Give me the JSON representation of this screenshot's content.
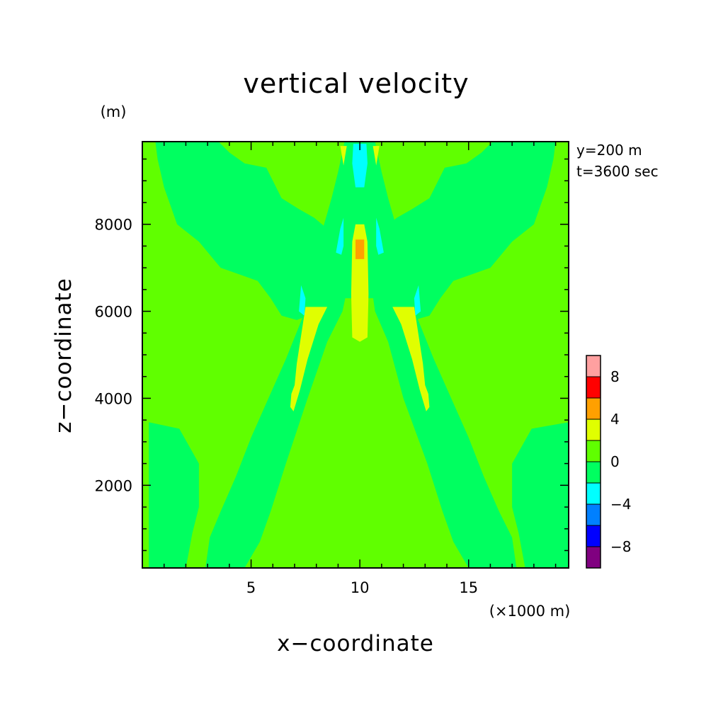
{
  "chart_data": {
    "type": "heatmap",
    "title": "vertical velocity",
    "xlabel": "x−coordinate",
    "ylabel": "z−coordinate",
    "x_unit": "(×1000 m)",
    "y_unit": "(m)",
    "info_lines": [
      "y=200 m",
      "t=3600 sec"
    ],
    "xlim": [
      0,
      19.6
    ],
    "ylim": [
      100,
      9900
    ],
    "x_ticks": [
      "5",
      "10",
      "15"
    ],
    "x_tick_values": [
      5,
      10,
      15
    ],
    "y_ticks": [
      "2000",
      "4000",
      "6000",
      "8000"
    ],
    "y_tick_values": [
      2000,
      4000,
      6000,
      8000
    ],
    "colorbar": {
      "levels": [
        -10,
        -8,
        -6,
        -4,
        -2,
        0,
        2,
        4,
        6,
        8,
        10
      ],
      "colors": [
        "#800080",
        "#0000ff",
        "#0080ff",
        "#00ffff",
        "#00ff60",
        "#60ff00",
        "#e0ff00",
        "#ffa000",
        "#ff0000",
        "#ffa0a0"
      ],
      "tick_labels": [
        "−8",
        "−4",
        "0",
        "4",
        "8"
      ],
      "tick_values": [
        -8,
        -4,
        0,
        4,
        8
      ]
    },
    "background_class": "0 to 2",
    "regions": [
      {
        "class": "-2 to 0",
        "points": [
          [
            0.3,
            100
          ],
          [
            2.0,
            100
          ],
          [
            2.3,
            900
          ],
          [
            2.6,
            1500
          ],
          [
            2.6,
            2500
          ],
          [
            1.7,
            3300
          ],
          [
            0.3,
            3450
          ]
        ]
      },
      {
        "class": "-2 to 0",
        "points": [
          [
            19.6,
            100
          ],
          [
            17.6,
            100
          ],
          [
            17.3,
            900
          ],
          [
            17.0,
            1500
          ],
          [
            17.0,
            2500
          ],
          [
            17.9,
            3300
          ],
          [
            19.6,
            3450
          ]
        ]
      },
      {
        "class": "-2 to 0",
        "points": [
          [
            2.2,
            9900
          ],
          [
            0.6,
            9900
          ],
          [
            0.7,
            9500
          ],
          [
            1.0,
            8850
          ],
          [
            1.6,
            8000
          ],
          [
            2.6,
            7600
          ],
          [
            3.6,
            7000
          ],
          [
            5.3,
            6700
          ],
          [
            5.9,
            6300
          ],
          [
            6.4,
            5900
          ],
          [
            7.1,
            5800
          ],
          [
            8.1,
            6000
          ],
          [
            8.6,
            6700
          ],
          [
            8.8,
            7300
          ],
          [
            8.5,
            7900
          ],
          [
            7.9,
            8150
          ],
          [
            7.2,
            8350
          ],
          [
            6.4,
            8600
          ],
          [
            6.0,
            9000
          ],
          [
            5.7,
            9300
          ],
          [
            4.7,
            9400
          ],
          [
            4.0,
            9650
          ],
          [
            3.5,
            9900
          ]
        ]
      },
      {
        "class": "-2 to 0",
        "points": [
          [
            17.4,
            9900
          ],
          [
            19.0,
            9900
          ],
          [
            18.9,
            9500
          ],
          [
            18.6,
            8850
          ],
          [
            18.0,
            8000
          ],
          [
            17.0,
            7600
          ],
          [
            16.0,
            7000
          ],
          [
            14.3,
            6700
          ],
          [
            13.7,
            6300
          ],
          [
            13.2,
            5900
          ],
          [
            12.5,
            5800
          ],
          [
            11.5,
            6000
          ],
          [
            11.0,
            6700
          ],
          [
            10.8,
            7300
          ],
          [
            11.1,
            7900
          ],
          [
            11.7,
            8150
          ],
          [
            12.4,
            8350
          ],
          [
            13.2,
            8600
          ],
          [
            13.6,
            9000
          ],
          [
            13.9,
            9300
          ],
          [
            14.9,
            9400
          ],
          [
            15.6,
            9650
          ],
          [
            16.1,
            9900
          ]
        ]
      },
      {
        "class": "-2 to 0",
        "points": [
          [
            9.3,
            6300
          ],
          [
            8.6,
            6500
          ],
          [
            8.3,
            7100
          ],
          [
            8.3,
            7900
          ],
          [
            8.7,
            8600
          ],
          [
            9.0,
            9200
          ],
          [
            9.3,
            9900
          ],
          [
            10.7,
            9900
          ],
          [
            11.0,
            9200
          ],
          [
            11.3,
            8600
          ],
          [
            11.7,
            7900
          ],
          [
            11.7,
            7100
          ],
          [
            11.4,
            6500
          ],
          [
            10.7,
            6300
          ]
        ]
      },
      {
        "class": "-2 to 0",
        "points": [
          [
            4.7,
            100
          ],
          [
            5.4,
            700
          ],
          [
            5.9,
            1400
          ],
          [
            6.6,
            2500
          ],
          [
            7.6,
            4000
          ],
          [
            8.5,
            5300
          ],
          [
            9.2,
            6000
          ],
          [
            9.5,
            6700
          ],
          [
            9.1,
            7200
          ],
          [
            8.4,
            7200
          ],
          [
            7.9,
            6700
          ],
          [
            7.4,
            5900
          ],
          [
            6.6,
            4900
          ],
          [
            5.8,
            4000
          ],
          [
            5.0,
            3100
          ],
          [
            4.3,
            2200
          ],
          [
            3.6,
            1400
          ],
          [
            3.1,
            800
          ],
          [
            2.9,
            100
          ]
        ]
      },
      {
        "class": "-2 to 0",
        "points": [
          [
            15.0,
            100
          ],
          [
            14.3,
            700
          ],
          [
            13.8,
            1400
          ],
          [
            13.1,
            2500
          ],
          [
            12.0,
            4000
          ],
          [
            11.3,
            5300
          ],
          [
            10.7,
            6000
          ],
          [
            10.5,
            6700
          ],
          [
            10.9,
            7200
          ],
          [
            11.6,
            7200
          ],
          [
            12.1,
            6700
          ],
          [
            12.6,
            5900
          ],
          [
            13.4,
            4900
          ],
          [
            14.2,
            4000
          ],
          [
            15.0,
            3100
          ],
          [
            15.7,
            2200
          ],
          [
            16.4,
            1400
          ],
          [
            17.0,
            800
          ],
          [
            17.2,
            100
          ]
        ]
      },
      {
        "class": "0 to 2",
        "points": [
          [
            8.75,
            1900
          ],
          [
            8.4,
            1650
          ],
          [
            8.5,
            1000
          ],
          [
            8.65,
            800
          ],
          [
            9.0,
            850
          ],
          [
            9.1,
            1500
          ]
        ]
      },
      {
        "class": "0 to 2",
        "points": [
          [
            11.25,
            1900
          ],
          [
            11.6,
            1650
          ],
          [
            11.5,
            1000
          ],
          [
            11.35,
            800
          ],
          [
            11.0,
            850
          ],
          [
            10.9,
            1500
          ]
        ]
      },
      {
        "class": "0 to 2",
        "points": [
          [
            9.5,
            2000
          ],
          [
            9.6,
            1600
          ],
          [
            10.0,
            1400
          ],
          [
            10.4,
            1600
          ],
          [
            10.5,
            2000
          ],
          [
            10.5,
            5000
          ],
          [
            9.5,
            5000
          ]
        ]
      },
      {
        "class": "2 to 4",
        "points": [
          [
            9.65,
            5400
          ],
          [
            9.6,
            6400
          ],
          [
            9.65,
            7600
          ],
          [
            9.8,
            8000
          ],
          [
            10.2,
            8000
          ],
          [
            10.35,
            7600
          ],
          [
            10.4,
            6400
          ],
          [
            10.35,
            5400
          ],
          [
            10.0,
            5300
          ]
        ]
      },
      {
        "class": "4 to 6",
        "points": [
          [
            9.8,
            7200
          ],
          [
            9.8,
            7650
          ],
          [
            10.2,
            7650
          ],
          [
            10.2,
            7200
          ]
        ]
      },
      {
        "class": "2 to 4",
        "points": [
          [
            7.5,
            6100
          ],
          [
            7.1,
            4800
          ],
          [
            7.0,
            4300
          ],
          [
            6.85,
            4100
          ],
          [
            6.8,
            3800
          ],
          [
            6.95,
            3700
          ],
          [
            7.25,
            4200
          ],
          [
            7.6,
            4900
          ],
          [
            8.1,
            5700
          ],
          [
            8.5,
            6100
          ]
        ]
      },
      {
        "class": "2 to 4",
        "points": [
          [
            12.5,
            6100
          ],
          [
            12.9,
            4800
          ],
          [
            13.0,
            4300
          ],
          [
            13.15,
            4100
          ],
          [
            13.2,
            3800
          ],
          [
            13.05,
            3700
          ],
          [
            12.75,
            4200
          ],
          [
            12.4,
            4900
          ],
          [
            11.9,
            5700
          ],
          [
            11.5,
            6100
          ]
        ]
      },
      {
        "class": "2 to 4",
        "points": [
          [
            9.1,
            9800
          ],
          [
            9.25,
            9350
          ],
          [
            9.4,
            9800
          ]
        ]
      },
      {
        "class": "2 to 4",
        "points": [
          [
            10.9,
            9800
          ],
          [
            10.75,
            9350
          ],
          [
            10.6,
            9800
          ]
        ]
      },
      {
        "class": "-4 to -2",
        "points": [
          [
            9.7,
            9850
          ],
          [
            9.65,
            9400
          ],
          [
            9.8,
            8850
          ],
          [
            10.2,
            8850
          ],
          [
            10.35,
            9400
          ],
          [
            10.3,
            9850
          ]
        ]
      },
      {
        "class": "-4 to -2",
        "points": [
          [
            8.9,
            7350
          ],
          [
            9.1,
            7900
          ],
          [
            9.25,
            8150
          ],
          [
            9.25,
            7500
          ],
          [
            9.15,
            7300
          ]
        ]
      },
      {
        "class": "-4 to -2",
        "points": [
          [
            11.1,
            7350
          ],
          [
            10.9,
            7900
          ],
          [
            10.75,
            8150
          ],
          [
            10.75,
            7500
          ],
          [
            10.85,
            7300
          ]
        ]
      },
      {
        "class": "-4 to -2",
        "points": [
          [
            7.2,
            6000
          ],
          [
            7.3,
            6600
          ],
          [
            7.5,
            6300
          ],
          [
            7.45,
            5900
          ]
        ]
      },
      {
        "class": "-4 to -2",
        "points": [
          [
            12.8,
            6000
          ],
          [
            12.7,
            6600
          ],
          [
            12.5,
            6300
          ],
          [
            12.55,
            5900
          ]
        ]
      }
    ]
  }
}
